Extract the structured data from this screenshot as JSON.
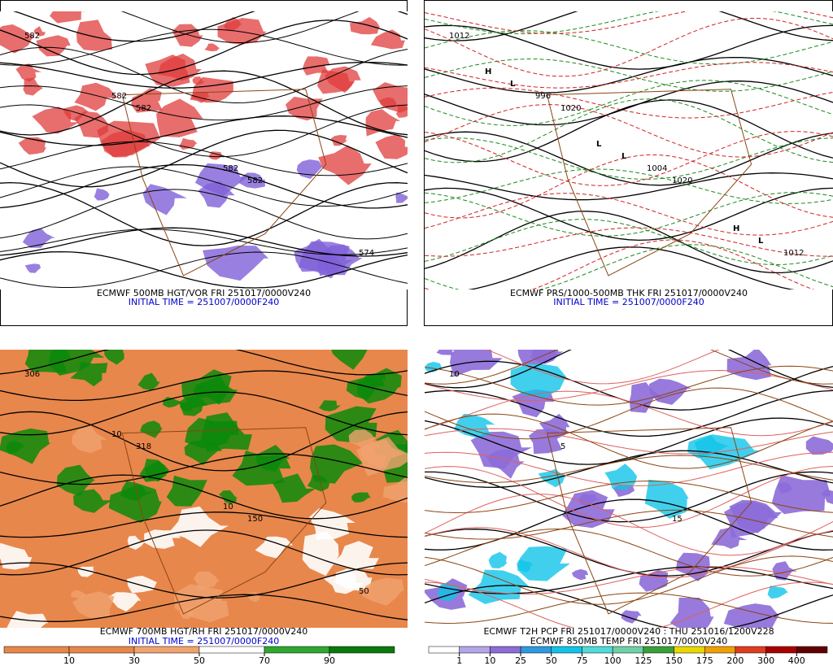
{
  "panels": [
    {
      "caption": "ECMWF 500MB HGT/VOR FRI 251017/0000V240",
      "initial_time": "INITIAL TIME = 251007/0000F240",
      "map_labels": [
        "582",
        "582",
        "582",
        "574",
        "582",
        "582"
      ]
    },
    {
      "caption": "ECMWF PRS/1000-500MB THK FRI 251017/0000V240",
      "initial_time": "INITIAL TIME = 251007/0000F240",
      "map_labels": [
        "1012",
        "1020",
        "1020",
        "1012",
        "996",
        "1004",
        "L",
        "L",
        "L",
        "H",
        "H",
        "L"
      ]
    },
    {
      "caption": "ECMWF 700MB HGT/RH FRI 251017/0000V240",
      "initial_time": "INITIAL TIME = 251007/0000F240",
      "map_labels": [
        "306",
        "318",
        "150",
        "50",
        "10",
        "10"
      ],
      "colorbar": {
        "labels": [
          10,
          30,
          50,
          70,
          90
        ],
        "colors": [
          "#e8874b",
          "#e8874b",
          "#f0a36f",
          "#ffffff",
          "#2fa82f",
          "#0a7a0a"
        ]
      }
    },
    {
      "caption": "ECMWF T2H PCP FRI 251017/0000V240 : THU 251016/1200V228",
      "initial_time": "ECMWF 850MB TEMP FRI 251017/0000V240",
      "map_labels": [
        "10",
        "5",
        "15"
      ],
      "colorbar": {
        "labels": [
          1,
          10,
          25,
          50,
          75,
          100,
          125,
          150,
          175,
          200,
          300,
          400
        ],
        "colors": [
          "#ffffff",
          "#b4a4e8",
          "#8c6cd8",
          "#2c9ae0",
          "#10c4e8",
          "#50dcd8",
          "#70d0a8",
          "#3aa03a",
          "#e8d800",
          "#f0a000",
          "#e03c20",
          "#a80000",
          "#600000"
        ]
      }
    }
  ]
}
